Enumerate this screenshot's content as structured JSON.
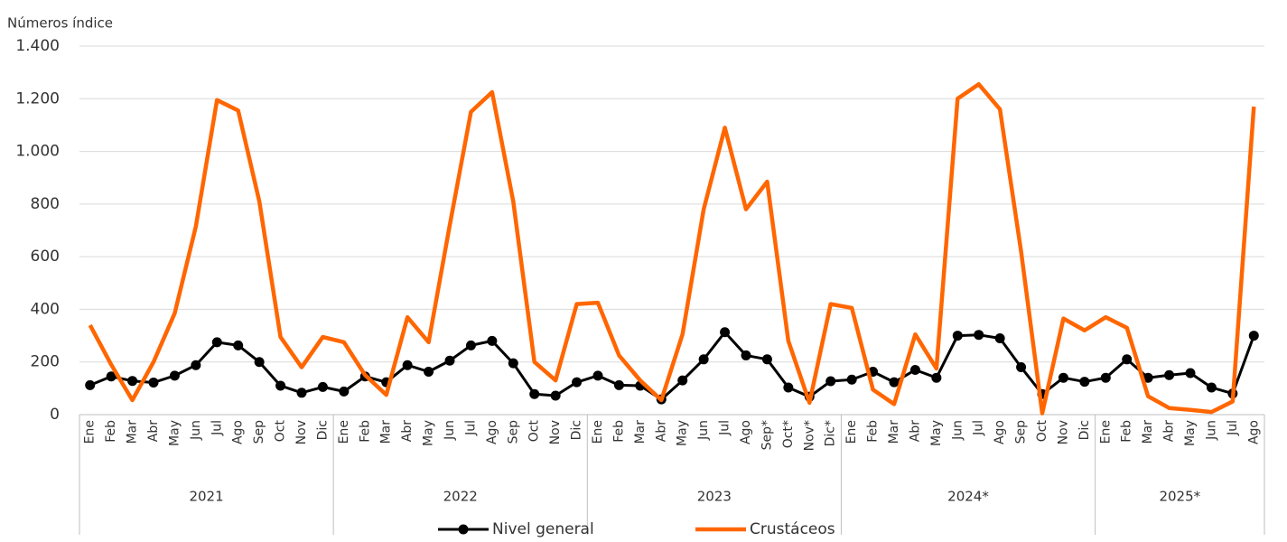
{
  "chart_data": {
    "type": "line",
    "y_axis_label": "Números índice",
    "categories": [
      "Ene",
      "Feb",
      "Mar",
      "Abr",
      "May",
      "Jun",
      "Jul",
      "Ago",
      "Sep",
      "Oct",
      "Nov",
      "Dic",
      "Ene",
      "Feb",
      "Mar",
      "Abr",
      "May",
      "Jun",
      "Jul",
      "Ago",
      "Sep",
      "Oct",
      "Nov",
      "Dic",
      "Ene",
      "Feb",
      "Mar",
      "Abr",
      "May",
      "Jun",
      "Jul",
      "Ago",
      "Sep*",
      "Oct*",
      "Nov*",
      "Dic*",
      "Ene",
      "Feb",
      "Mar",
      "Abr",
      "May",
      "Jun",
      "Jul",
      "Ago",
      "Sep",
      "Oct",
      "Nov",
      "Dic",
      "Ene",
      "Feb",
      "Mar",
      "Abr",
      "May",
      "Jun",
      "Jul",
      "Ago"
    ],
    "groups": [
      {
        "label": "2021",
        "count": 12
      },
      {
        "label": "2022",
        "count": 12
      },
      {
        "label": "2023",
        "count": 12
      },
      {
        "label": "2024*",
        "count": 12
      },
      {
        "label": "2025*",
        "count": 8
      }
    ],
    "series": [
      {
        "name": "Nivel general",
        "color": "#000000",
        "marker": true,
        "values": [
          112,
          145,
          128,
          122,
          148,
          188,
          275,
          263,
          200,
          110,
          83,
          105,
          88,
          145,
          123,
          188,
          163,
          205,
          263,
          280,
          195,
          78,
          72,
          123,
          148,
          112,
          110,
          58,
          130,
          210,
          313,
          225,
          210,
          103,
          68,
          127,
          133,
          163,
          123,
          170,
          140,
          300,
          303,
          290,
          180,
          78,
          140,
          125,
          140,
          210,
          140,
          150,
          158,
          103,
          80,
          300
        ]
      },
      {
        "name": "Crustáceos",
        "color": "#ff6600",
        "marker": false,
        "values": [
          340,
          190,
          55,
          200,
          385,
          715,
          1195,
          1155,
          810,
          295,
          180,
          295,
          275,
          150,
          75,
          370,
          275,
          720,
          1150,
          1225,
          810,
          200,
          130,
          420,
          425,
          225,
          130,
          55,
          305,
          780,
          1090,
          780,
          885,
          280,
          45,
          420,
          405,
          95,
          40,
          305,
          175,
          1200,
          1255,
          1160,
          620,
          5,
          365,
          320,
          370,
          330,
          70,
          25,
          18,
          10,
          50,
          1170
        ]
      }
    ],
    "ylim": [
      0,
      1400
    ],
    "yticks": [
      0,
      200,
      400,
      600,
      800,
      {
        "value": 1000,
        "label": "1.000"
      },
      {
        "value": 1200,
        "label": "1.200"
      },
      {
        "value": 1400,
        "label": "1.400"
      }
    ],
    "grid": true
  }
}
